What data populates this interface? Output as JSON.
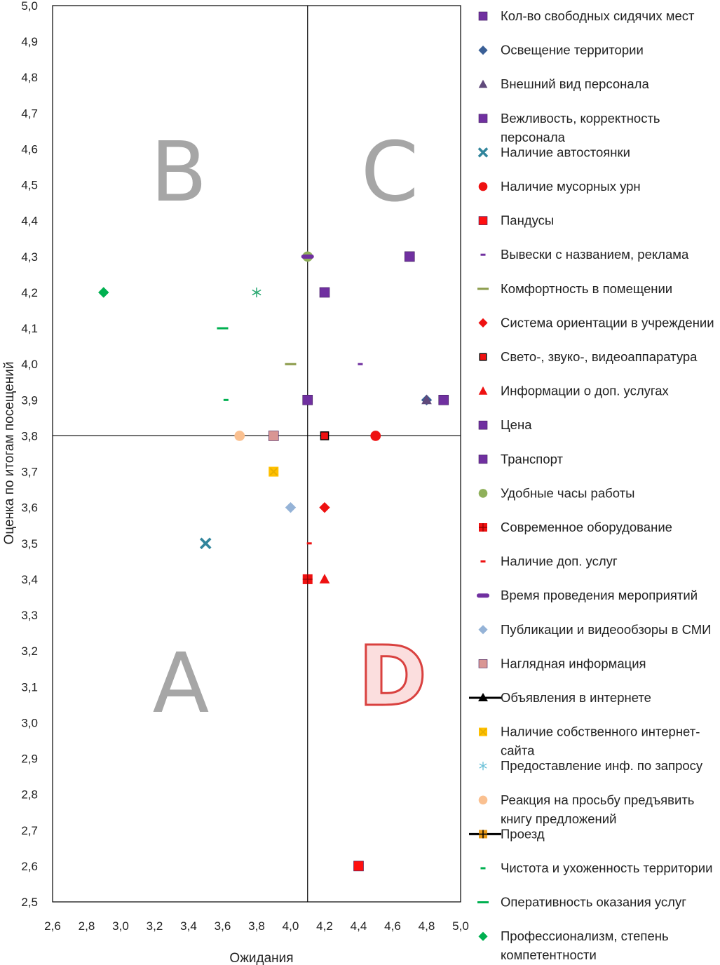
{
  "chart_data": {
    "type": "scatter",
    "title": "",
    "xlabel": "Ожидания",
    "ylabel": "Оценка по итогам посещений",
    "xlim": [
      2.6,
      5.0
    ],
    "ylim": [
      2.5,
      5.0
    ],
    "x_ticks": [
      "2,6",
      "2,8",
      "3,0",
      "3,2",
      "3,4",
      "3,6",
      "3,8",
      "4,0",
      "4,2",
      "4,4",
      "4,6",
      "4,8",
      "5,0"
    ],
    "y_ticks": [
      "2,5",
      "2,6",
      "2,7",
      "2,8",
      "2,9",
      "3,0",
      "3,1",
      "3,2",
      "3,3",
      "3,4",
      "3,5",
      "3,6",
      "3,7",
      "3,8",
      "3,9",
      "4,0",
      "4,1",
      "4,2",
      "4,3",
      "4,4",
      "4,5",
      "4,6",
      "4,7",
      "4,8",
      "4,9",
      "5,0"
    ],
    "divider_x": 4.1,
    "divider_y": 3.8,
    "quadrant_labels": [
      {
        "text": "B",
        "quadrant": "top-left"
      },
      {
        "text": "C",
        "quadrant": "top-right"
      },
      {
        "text": "A",
        "quadrant": "bottom-left"
      },
      {
        "text": "D",
        "quadrant": "bottom-right"
      }
    ],
    "grid": false,
    "legend_position": "right",
    "series": [
      {
        "name": "Кол-во свободных сидячих мест",
        "marker": "square",
        "color": "#7030a0",
        "points": [
          [
            4.7,
            4.3
          ]
        ]
      },
      {
        "name": "Освещение территории",
        "marker": "diamond",
        "color": "#3a5f96",
        "points": [
          [
            4.8,
            3.9
          ]
        ]
      },
      {
        "name": "Внешний вид персонала",
        "marker": "triangle",
        "color": "#604a7b",
        "points": [
          [
            4.8,
            3.9
          ]
        ]
      },
      {
        "name": "Вежливость, корректность персонала",
        "marker": "square",
        "color": "#7030a0",
        "points": [
          [
            4.9,
            3.9
          ]
        ]
      },
      {
        "name": "Наличие автостоянки",
        "marker": "x",
        "color": "#31859c",
        "points": [
          [
            3.5,
            3.5
          ]
        ]
      },
      {
        "name": "Наличие мусорных урн",
        "marker": "circle",
        "color": "#ee1111",
        "points": [
          [
            4.5,
            3.8
          ]
        ]
      },
      {
        "name": "Пандусы",
        "marker": "square",
        "color": "#ff1010",
        "points": [
          [
            4.4,
            2.6
          ]
        ]
      },
      {
        "name": "Вывески с названием, реклама",
        "marker": "dash",
        "color": "#7030a0",
        "points": [
          [
            4.41,
            4.0
          ]
        ]
      },
      {
        "name": "Комфортность в помещении",
        "marker": "line",
        "color": "#8b9b4a",
        "points": [
          [
            4.0,
            4.0
          ]
        ]
      },
      {
        "name": "Система ориентации в учреждении",
        "marker": "diamond",
        "color": "#ee1111",
        "points": [
          [
            4.2,
            3.6
          ]
        ]
      },
      {
        "name": "Свето-, звуко-, видеоаппаратура",
        "marker": "square-outline",
        "color": "#ee1111",
        "points": [
          [
            4.2,
            3.8
          ]
        ]
      },
      {
        "name": "Информации о доп. услугах",
        "marker": "triangle",
        "color": "#ee1111",
        "points": [
          [
            4.2,
            3.4
          ]
        ]
      },
      {
        "name": "Цена",
        "marker": "square",
        "color": "#7030a0",
        "points": [
          [
            4.1,
            3.9
          ]
        ]
      },
      {
        "name": "Транспорт",
        "marker": "square",
        "color": "#7030a0",
        "points": [
          [
            4.2,
            4.2
          ]
        ]
      },
      {
        "name": "Удобные часы работы",
        "marker": "circle",
        "color": "#8fb05a",
        "points": [
          [
            4.1,
            4.3
          ]
        ]
      },
      {
        "name": "Современное оборудование",
        "marker": "square-plus",
        "color": "#ee1111",
        "points": [
          [
            4.1,
            3.4
          ]
        ]
      },
      {
        "name": "Наличие доп. услуг",
        "marker": "dash",
        "color": "#ee1111",
        "points": [
          [
            4.11,
            3.5
          ]
        ]
      },
      {
        "name": "Время проведения мероприятий",
        "marker": "bar",
        "color": "#7030a0",
        "points": [
          [
            4.1,
            4.3
          ]
        ]
      },
      {
        "name": "Публикации и видеообзоры в СМИ",
        "marker": "diamond",
        "color": "#95b3d7",
        "points": [
          [
            4.0,
            3.6
          ]
        ]
      },
      {
        "name": "Наглядная информация",
        "marker": "square",
        "color": "#d99694",
        "points": [
          [
            3.9,
            3.8
          ]
        ]
      },
      {
        "name": "Объявления в интернете",
        "marker": "triangle-line",
        "color": "#000000",
        "points": []
      },
      {
        "name": "Наличие собственного интернет-сайта",
        "marker": "x-square",
        "color": "#ffc000",
        "points": [
          [
            3.9,
            3.7
          ]
        ]
      },
      {
        "name": "Предоставление инф. по запросу",
        "marker": "star",
        "color": "#6fc3d9",
        "points": [
          [
            3.8,
            4.2
          ]
        ]
      },
      {
        "name": "Реакция на просьбу предъявить книгу предложений",
        "marker": "circle",
        "color": "#fac090",
        "points": [
          [
            3.7,
            3.8
          ]
        ]
      },
      {
        "name": "Проезд",
        "marker": "plus-line",
        "color": "#e89b1a",
        "points": []
      },
      {
        "name": "Чистота и ухоженность территории",
        "marker": "dash",
        "color": "#00b050",
        "points": [
          [
            3.62,
            3.9
          ]
        ]
      },
      {
        "name": "Оперативность оказания услуг",
        "marker": "line",
        "color": "#00b050",
        "points": [
          [
            3.6,
            4.1
          ]
        ]
      },
      {
        "name": "Профессионализм, степень компетентности",
        "marker": "diamond",
        "color": "#00b050",
        "points": [
          [
            2.9,
            4.2
          ]
        ]
      }
    ],
    "extra_marks": [
      {
        "marker": "star",
        "color": "#2eaa6e",
        "x": 3.8,
        "y": 4.2
      }
    ]
  }
}
